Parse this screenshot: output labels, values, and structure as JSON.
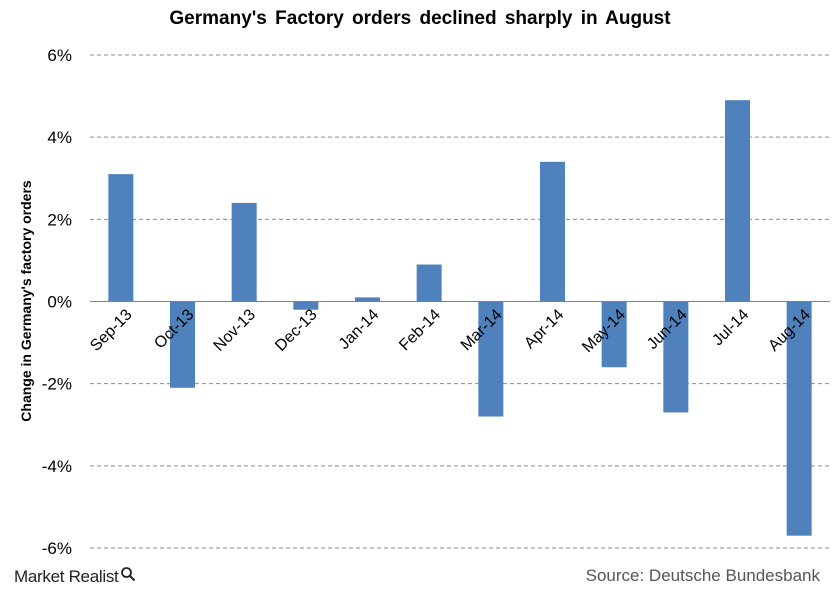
{
  "chart_data": {
    "type": "bar",
    "title": "Germany's Factory orders declined sharply in August",
    "ylabel": "Change in Germany's factory orders",
    "xlabel": "",
    "categories": [
      "Sep-13",
      "Oct-13",
      "Nov-13",
      "Dec-13",
      "Jan-14",
      "Feb-14",
      "Mar-14",
      "Apr-14",
      "May-14",
      "Jun-14",
      "Jul-14",
      "Aug-14"
    ],
    "values": [
      3.1,
      -2.1,
      2.4,
      -0.2,
      0.1,
      0.9,
      -2.8,
      3.4,
      -1.6,
      -2.7,
      4.9,
      -5.7
    ],
    "unit": "%",
    "ylim": [
      -6,
      6
    ],
    "yticks": [
      6,
      4,
      2,
      0,
      -2,
      -4,
      -6
    ],
    "ytick_labels": [
      "6%",
      "4%",
      "2%",
      "0%",
      "-2%",
      "-4%",
      "-6%"
    ],
    "grid": "horizontal-dashed",
    "legend": "none",
    "bar_color": "#4F81BD"
  },
  "footer": {
    "brand": "Market Realist",
    "source": "Source: Deutsche Bundesbank"
  }
}
